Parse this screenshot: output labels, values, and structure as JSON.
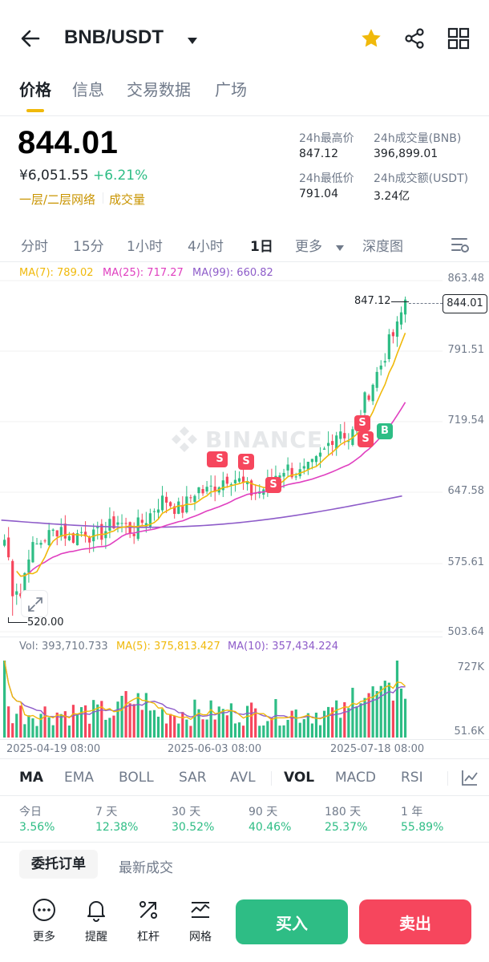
{
  "header": {
    "pair": "BNB/USDT",
    "icons": [
      "back-arrow-icon",
      "caret-down-icon",
      "star-icon",
      "share-icon",
      "grid-icon"
    ],
    "star_color": "#f0b90b"
  },
  "tabs": [
    "价格",
    "信息",
    "交易数据",
    "广场"
  ],
  "active_tab": "价格",
  "price": {
    "last": "844.01",
    "cny": "¥6,051.55",
    "change": "+6.21%",
    "link1": "一层/二层网络",
    "link2": "成交量"
  },
  "stats": {
    "high_label": "24h最高价",
    "high": "847.12",
    "vol_bnb_label": "24h成交量(BNB)",
    "vol_bnb": "396,899.01",
    "low_label": "24h最低价",
    "low": "791.04",
    "vol_usdt_label": "24h成交额(USDT)",
    "vol_usdt": "3.24亿"
  },
  "timeframes": [
    "分时",
    "15分",
    "1小时",
    "4小时",
    "1日",
    "更多",
    "深度图"
  ],
  "active_timeframe": "1日",
  "ma_legend": {
    "ma7": "MA(7): 789.02",
    "ma25": "MA(25): 717.27",
    "ma99": "MA(99): 660.82"
  },
  "price_axis": [
    "863.48",
    "791.51",
    "719.54",
    "647.58",
    "575.61",
    "503.64"
  ],
  "price_marks": {
    "high_label": "847.12",
    "low_label": "520.00",
    "current_tag": "844.01"
  },
  "watermark": "BINANCE",
  "signals": [
    "S",
    "S",
    "S",
    "S",
    "S",
    "B"
  ],
  "vol_legend": {
    "vol": "Vol: 393,710.733",
    "ma5": "MA(5): 375,813.427",
    "ma10": "MA(10): 357,434.224"
  },
  "vol_axis": [
    "727K",
    "51.6K"
  ],
  "date_labels": [
    "2025-04-19 08:00",
    "2025-06-03 08:00",
    "2025-07-18 08:00"
  ],
  "indicators": [
    "MA",
    "EMA",
    "BOLL",
    "SAR",
    "AVL",
    "VOL",
    "MACD",
    "RSI"
  ],
  "active_indicators": [
    "MA",
    "VOL"
  ],
  "periods": [
    {
      "label": "今日",
      "value": "3.56%"
    },
    {
      "label": "7 天",
      "value": "12.38%"
    },
    {
      "label": "30 天",
      "value": "30.52%"
    },
    {
      "label": "90 天",
      "value": "40.46%"
    },
    {
      "label": "180 天",
      "value": "25.37%"
    },
    {
      "label": "1 年",
      "value": "55.89%"
    }
  ],
  "order_tabs": [
    "委托订单",
    "最新成交"
  ],
  "bottom_nav": [
    {
      "label": "更多",
      "icon": "more-icon"
    },
    {
      "label": "提醒",
      "icon": "bell-icon"
    },
    {
      "label": "杠杆",
      "icon": "leverage-icon"
    },
    {
      "label": "网格",
      "icon": "grid-trade-icon"
    }
  ],
  "buy_label": "买入",
  "sell_label": "卖出",
  "colors": {
    "up": "#2ebd85",
    "down": "#f6465d",
    "ma7": "#f0b90b",
    "ma25": "#e040c0",
    "ma99": "#8e5cc9",
    "accent": "#f0b90b"
  },
  "chart_data": {
    "type": "candlestick",
    "timeframe": "1日",
    "x_labels": [
      "2025-04-19 08:00",
      "2025-06-03 08:00",
      "2025-07-18 08:00"
    ],
    "ylim": [
      503.64,
      863.48
    ],
    "high": 847.12,
    "low": 520.0,
    "last": 844.01,
    "close_series_approx": [
      598,
      560,
      540,
      585,
      592,
      600,
      605,
      612,
      598,
      603,
      608,
      600,
      604,
      610,
      618,
      612,
      606,
      615,
      622,
      634,
      640,
      633,
      628,
      638,
      651,
      646,
      652,
      658,
      664,
      660,
      652,
      645,
      648,
      656,
      666,
      672,
      668,
      665,
      670,
      678,
      690,
      705,
      712,
      700,
      718,
      742,
      760,
      778,
      800,
      815,
      844.01
    ],
    "series": [
      {
        "name": "MA(7)",
        "last": 789.02
      },
      {
        "name": "MA(25)",
        "last": 717.27
      },
      {
        "name": "MA(99)",
        "last": 660.82
      }
    ],
    "volume": {
      "name": "Vol",
      "last": 393710.733,
      "ma5": 375813.427,
      "ma10": 357434.224,
      "ylim": [
        51600,
        727000
      ]
    }
  }
}
